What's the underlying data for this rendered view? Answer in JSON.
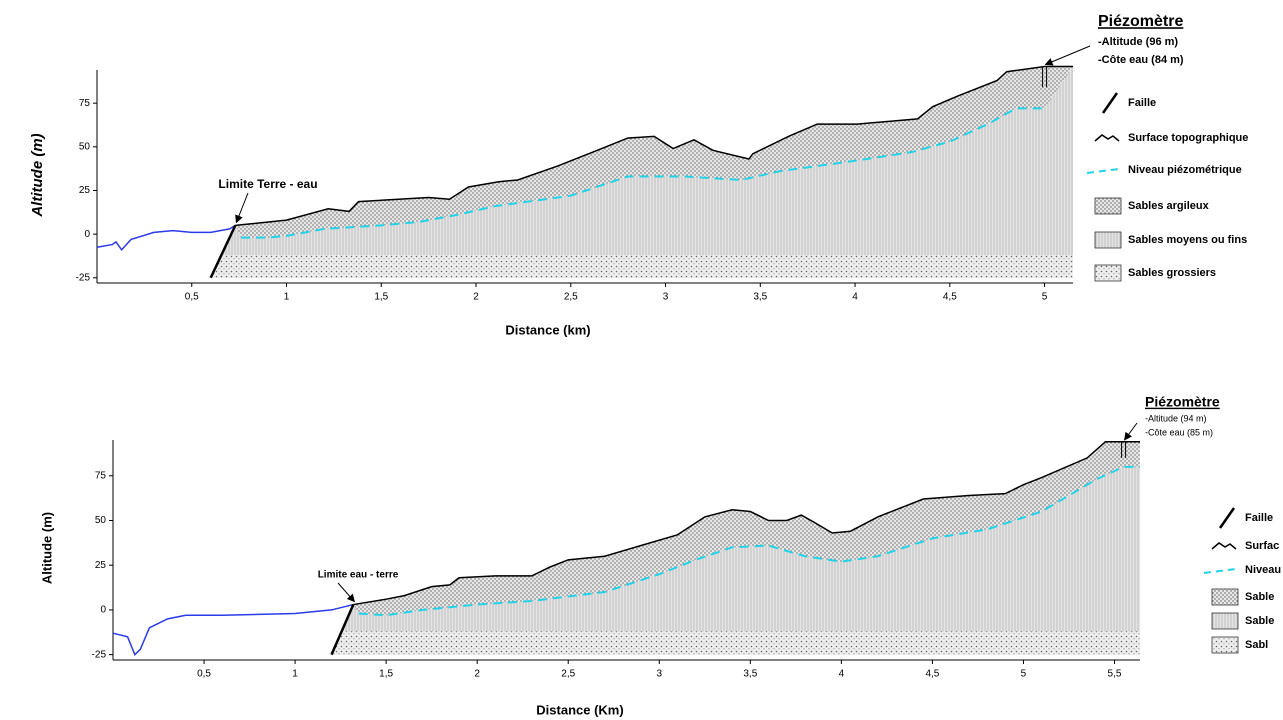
{
  "chart_data": [
    {
      "type": "cross-section",
      "y_label": "Altitude (m)",
      "x_label": "Distance (km)",
      "xlim": [
        0,
        5.15
      ],
      "ylim": [
        -28,
        94
      ],
      "xticks": [
        {
          "value": 0.5,
          "label": "0,5"
        },
        1,
        {
          "value": 1.5,
          "label": "1,5"
        },
        2,
        {
          "value": 2.5,
          "label": "2,5"
        },
        3,
        {
          "value": 3.5,
          "label": "3,5"
        },
        4,
        {
          "value": 4.5,
          "label": "4,5"
        },
        5
      ],
      "yticks": [
        -25,
        0,
        25,
        50,
        75
      ],
      "series": [
        {
          "color": "#2b3be8",
          "x": [
            0,
            0.08,
            0.1,
            0.13,
            0.18,
            0.3,
            0.4,
            0.5,
            0.6,
            0.7,
            0.73
          ],
          "values": [
            -7.5,
            -6,
            -4.5,
            -9,
            -3,
            1,
            2,
            1,
            1,
            3,
            5
          ]
        },
        {
          "name": "Surface topographique",
          "color": "#000000",
          "x": [
            0.73,
            1,
            1.22,
            1.33,
            1.38,
            1.59,
            1.75,
            1.86,
            1.96,
            2.12,
            2.22,
            2.43,
            2.64,
            2.8,
            2.94,
            3.04,
            3.15,
            3.25,
            3.44,
            3.46,
            3.65,
            3.8,
            4.01,
            4.33,
            4.41,
            4.54,
            4.75,
            4.8,
            5,
            5.15
          ],
          "values": [
            5,
            8,
            14.5,
            13,
            18.6,
            20,
            21,
            20,
            27,
            30,
            31,
            39,
            48,
            55,
            56,
            49,
            54,
            48,
            43,
            46,
            56,
            63,
            63,
            66,
            73,
            79,
            88,
            93,
            96,
            96
          ]
        },
        {
          "name": "Niveau piézométrique",
          "color": "#22d3e8",
          "dashed": true,
          "x": [
            0.76,
            0.9,
            1,
            1.2,
            1.5,
            1.7,
            1.9,
            2.1,
            2.3,
            2.5,
            2.8,
            3.1,
            3.4,
            3.6,
            4,
            4.3,
            4.5,
            4.7,
            4.85,
            5
          ],
          "values": [
            -2,
            -2,
            -1,
            3,
            5,
            7,
            11,
            16,
            19,
            22,
            33,
            33,
            31,
            36,
            42,
            47,
            53,
            63,
            72,
            72
          ]
        }
      ],
      "fault": {
        "name": "Faille",
        "x": [
          0.6,
          0.73
        ],
        "values": [
          -25,
          5
        ]
      },
      "layers": [
        {
          "name": "Sables argileux"
        },
        {
          "name": "Sables moyens ou fins"
        },
        {
          "name": "Sables grossiers",
          "top": -12,
          "bottom": -25
        }
      ],
      "annotation": "Limite Terre - eau",
      "piezometer": {
        "title": "Piézomètre",
        "x": 5,
        "altitude": 96,
        "altitude_label": "-Altitude (96 m)",
        "water": 84,
        "water_label": "-Côte eau (84 m)"
      }
    },
    {
      "type": "cross-section",
      "y_label": "Altitude (m)",
      "x_label": "Distance (Km)",
      "xlim": [
        0,
        5.64
      ],
      "ylim": [
        -28,
        95
      ],
      "xticks": [
        {
          "value": 0.5,
          "label": "0,5"
        },
        1,
        {
          "value": 1.5,
          "label": "1,5"
        },
        2,
        {
          "value": 2.5,
          "label": "2,5"
        },
        3,
        {
          "value": 3.5,
          "label": "3,5"
        },
        4,
        {
          "value": 4.5,
          "label": "4,5"
        },
        5,
        {
          "value": 5.5,
          "label": "5,5"
        }
      ],
      "yticks": [
        -25,
        0,
        25,
        50,
        75
      ],
      "series": [
        {
          "color": "#2b3be8",
          "x": [
            0,
            0.08,
            0.12,
            0.15,
            0.2,
            0.3,
            0.4,
            0.6,
            1,
            1.2,
            1.32
          ],
          "values": [
            -13,
            -15,
            -25,
            -22,
            -10,
            -5,
            -3,
            -3,
            -2,
            0,
            3
          ]
        },
        {
          "name": "Surfac",
          "color": "#000000",
          "x": [
            1.32,
            1.5,
            1.6,
            1.75,
            1.85,
            1.9,
            2.1,
            2.3,
            2.4,
            2.5,
            2.7,
            2.9,
            3.1,
            3.25,
            3.4,
            3.5,
            3.6,
            3.7,
            3.78,
            3.85,
            3.95,
            4.05,
            4.2,
            4.45,
            4.7,
            4.9,
            5,
            5.1,
            5.35,
            5.45,
            5.64
          ],
          "values": [
            3,
            6,
            8,
            13,
            14,
            18,
            19,
            19,
            24,
            28,
            30,
            36,
            42,
            52,
            56,
            55,
            50,
            50,
            53,
            49,
            43,
            44,
            52,
            62,
            64,
            65,
            70,
            74,
            85,
            94,
            94
          ]
        },
        {
          "name": "Niveau",
          "color": "#22d3e8",
          "dashed": true,
          "x": [
            1.35,
            1.5,
            1.7,
            2,
            2.3,
            2.7,
            3,
            3.2,
            3.4,
            3.6,
            3.8,
            4,
            4.2,
            4.5,
            4.8,
            5.1,
            5.4,
            5.55,
            5.64
          ],
          "values": [
            -2,
            -3,
            0,
            3,
            5,
            10,
            20,
            28,
            35,
            36,
            30,
            27,
            30,
            40,
            45,
            55,
            73,
            80,
            80
          ]
        }
      ],
      "fault": {
        "name": "Faille",
        "x": [
          1.2,
          1.32
        ],
        "values": [
          -25,
          3
        ]
      },
      "layers": [
        {
          "name": "Sable"
        },
        {
          "name": "Sable"
        },
        {
          "name": "Sabl",
          "top": -12,
          "bottom": -25
        }
      ],
      "annotation": "Limite eau - terre",
      "piezometer": {
        "title": "Piézomètre",
        "x": 5.55,
        "altitude": 94,
        "altitude_label": "-Altitude (94 m)",
        "water": 85,
        "water_label": "-Côte eau (85 m)"
      }
    }
  ]
}
